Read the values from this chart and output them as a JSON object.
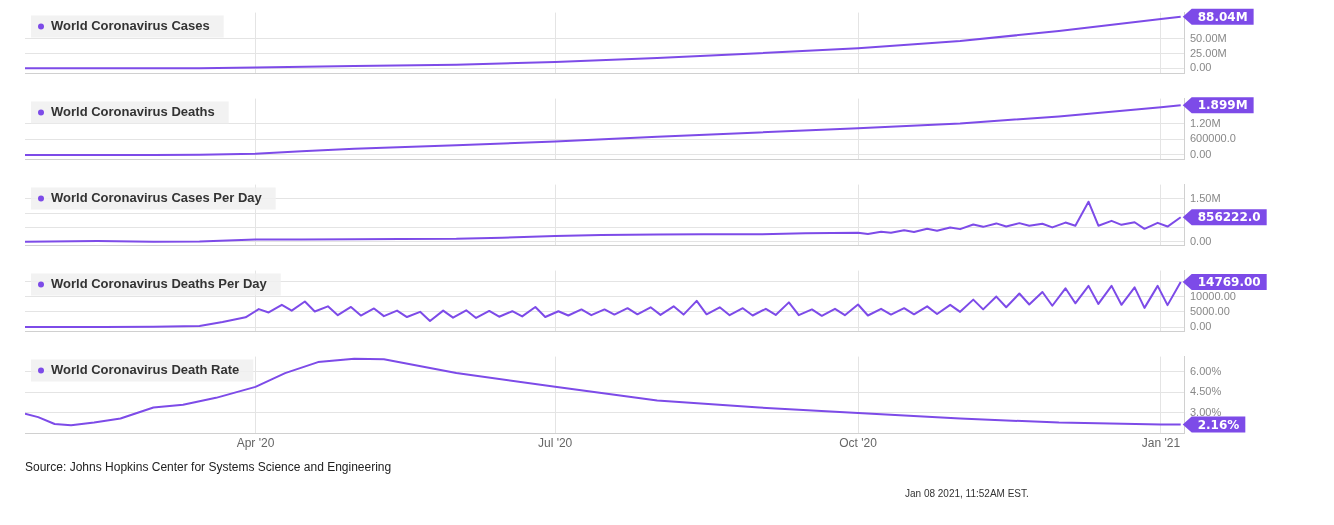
{
  "chart_data": [
    {
      "type": "line",
      "legend": "top left",
      "grid": true,
      "marker": "none",
      "line_style": "solid",
      "tick_labels": "y",
      "x": [
        "2020-01-22",
        "2020-02-15",
        "2020-03-01",
        "2020-03-15",
        "2020-04-01",
        "2020-05-01",
        "2020-06-01",
        "2020-07-01",
        "2020-08-01",
        "2020-09-01",
        "2020-10-01",
        "2020-11-01",
        "2020-12-01",
        "2021-01-01",
        "2021-01-07"
      ],
      "series": [
        {
          "name": "World Coronavirus Cases",
          "color": "#7d4be8",
          "values": [
            0,
            0,
            0,
            0,
            1000000,
            3500000,
            6000000,
            10500000,
            17500000,
            25500000,
            34000000,
            46500000,
            63500000,
            84000000,
            88040000
          ]
        }
      ],
      "xlim": [
        "2020-01-22",
        "2021-01-08"
      ],
      "xticks": [
        {
          "value": "2020-04-01",
          "label": null
        },
        {
          "value": "2020-07-01",
          "label": null
        },
        {
          "value": "2020-10-01",
          "label": null
        },
        {
          "value": "2021-01-01",
          "label": null
        }
      ],
      "ylim": [
        -9000000,
        95000000
      ],
      "yticks": [
        {
          "value": 0,
          "label": "0.00"
        },
        {
          "value": 25000000,
          "label": "25.00M"
        },
        {
          "value": 50000000,
          "label": "50.00M"
        }
      ],
      "annotations": [
        {
          "text": "88.04M",
          "x": "2021-01-07",
          "y": 88040000
        }
      ]
    },
    {
      "type": "line",
      "legend": "top left",
      "grid": true,
      "marker": "none",
      "line_style": "solid",
      "tick_labels": "y",
      "x": [
        "2020-01-22",
        "2020-02-15",
        "2020-03-01",
        "2020-03-15",
        "2020-04-01",
        "2020-04-15",
        "2020-05-01",
        "2020-06-01",
        "2020-07-01",
        "2020-08-01",
        "2020-09-01",
        "2020-10-01",
        "2020-11-01",
        "2020-12-01",
        "2021-01-01",
        "2021-01-07"
      ],
      "series": [
        {
          "name": "World Coronavirus Deaths",
          "color": "#7d4be8",
          "values": [
            0,
            0,
            0,
            10000,
            50000,
            140000,
            240000,
            370000,
            510000,
            690000,
            860000,
            1020000,
            1200000,
            1470000,
            1820000,
            1899000
          ]
        }
      ],
      "xlim": [
        "2020-01-22",
        "2021-01-08"
      ],
      "xticks": [
        {
          "value": "2020-04-01",
          "label": null
        },
        {
          "value": "2020-07-01",
          "label": null
        },
        {
          "value": "2020-10-01",
          "label": null
        },
        {
          "value": "2021-01-01",
          "label": null
        }
      ],
      "ylim": [
        -170000,
        2150000
      ],
      "yticks": [
        {
          "value": 0,
          "label": "0.00"
        },
        {
          "value": 600000,
          "label": "600000.0"
        },
        {
          "value": 1200000,
          "label": "1.20M"
        }
      ],
      "annotations": [
        {
          "text": "1.899M",
          "x": "2021-01-07",
          "y": 1899000
        }
      ]
    },
    {
      "type": "line",
      "legend": "top left",
      "grid": true,
      "marker": "none",
      "line_style": "solid",
      "tick_labels": "y",
      "x": [
        "2020-01-22",
        "2020-02-13",
        "2020-03-01",
        "2020-03-15",
        "2020-04-01",
        "2020-04-15",
        "2020-05-01",
        "2020-05-15",
        "2020-06-01",
        "2020-06-15",
        "2020-07-01",
        "2020-07-15",
        "2020-08-01",
        "2020-08-15",
        "2020-09-01",
        "2020-09-15",
        "2020-10-01",
        "2020-10-04",
        "2020-10-08",
        "2020-10-11",
        "2020-10-15",
        "2020-10-18",
        "2020-10-22",
        "2020-10-25",
        "2020-10-29",
        "2020-11-01",
        "2020-11-05",
        "2020-11-08",
        "2020-11-12",
        "2020-11-15",
        "2020-11-19",
        "2020-11-22",
        "2020-11-26",
        "2020-11-29",
        "2020-12-03",
        "2020-12-06",
        "2020-12-10",
        "2020-12-13",
        "2020-12-17",
        "2020-12-20",
        "2020-12-24",
        "2020-12-27",
        "2020-12-31",
        "2021-01-03",
        "2021-01-07"
      ],
      "series": [
        {
          "name": "World Coronavirus Cases Per Day",
          "color": "#7d4be8",
          "values": [
            0,
            20000,
            0,
            10000,
            76000,
            78000,
            88000,
            96000,
            100000,
            140000,
            200000,
            230000,
            250000,
            260000,
            260000,
            300000,
            310000,
            270000,
            350000,
            310000,
            400000,
            340000,
            450000,
            380000,
            500000,
            440000,
            600000,
            520000,
            640000,
            530000,
            650000,
            560000,
            630000,
            500000,
            670000,
            560000,
            1400000,
            560000,
            730000,
            590000,
            680000,
            450000,
            660000,
            530000,
            856222
          ]
        }
      ],
      "xlim": [
        "2020-01-22",
        "2021-01-08"
      ],
      "xticks": [
        {
          "value": "2020-04-01",
          "label": null
        },
        {
          "value": "2020-07-01",
          "label": null
        },
        {
          "value": "2020-10-01",
          "label": null
        },
        {
          "value": "2021-01-01",
          "label": null
        }
      ],
      "ylim": [
        -130000,
        2000000
      ],
      "yticks": [
        {
          "value": 0,
          "label": "0.00"
        },
        {
          "value": 500000,
          "label": null
        },
        {
          "value": 1000000,
          "label": null
        },
        {
          "value": 1500000,
          "label": "1.50M"
        }
      ],
      "annotations": [
        {
          "text": "856222.0",
          "x": "2021-01-07",
          "y": 856222
        }
      ]
    },
    {
      "type": "line",
      "legend": "top left",
      "grid": true,
      "marker": "none",
      "line_style": "solid",
      "tick_labels": "y",
      "x": [
        "2020-01-22",
        "2020-02-15",
        "2020-03-01",
        "2020-03-15",
        "2020-03-22",
        "2020-03-29",
        "2020-04-02",
        "2020-04-05",
        "2020-04-09",
        "2020-04-12",
        "2020-04-16",
        "2020-04-19",
        "2020-04-23",
        "2020-04-26",
        "2020-04-30",
        "2020-05-03",
        "2020-05-07",
        "2020-05-10",
        "2020-05-14",
        "2020-05-17",
        "2020-05-21",
        "2020-05-24",
        "2020-05-28",
        "2020-05-31",
        "2020-06-04",
        "2020-06-07",
        "2020-06-11",
        "2020-06-14",
        "2020-06-18",
        "2020-06-21",
        "2020-06-25",
        "2020-06-28",
        "2020-07-02",
        "2020-07-05",
        "2020-07-09",
        "2020-07-12",
        "2020-07-16",
        "2020-07-19",
        "2020-07-23",
        "2020-07-26",
        "2020-07-30",
        "2020-08-02",
        "2020-08-06",
        "2020-08-09",
        "2020-08-13",
        "2020-08-16",
        "2020-08-20",
        "2020-08-23",
        "2020-08-27",
        "2020-08-30",
        "2020-09-03",
        "2020-09-06",
        "2020-09-10",
        "2020-09-13",
        "2020-09-17",
        "2020-09-20",
        "2020-09-24",
        "2020-09-27",
        "2020-10-01",
        "2020-10-04",
        "2020-10-08",
        "2020-10-11",
        "2020-10-15",
        "2020-10-18",
        "2020-10-22",
        "2020-10-25",
        "2020-10-29",
        "2020-11-01",
        "2020-11-05",
        "2020-11-08",
        "2020-11-12",
        "2020-11-15",
        "2020-11-19",
        "2020-11-22",
        "2020-11-26",
        "2020-11-29",
        "2020-12-03",
        "2020-12-06",
        "2020-12-10",
        "2020-12-13",
        "2020-12-17",
        "2020-12-20",
        "2020-12-24",
        "2020-12-27",
        "2020-12-31",
        "2021-01-03",
        "2021-01-07"
      ],
      "series": [
        {
          "name": "World Coronavirus Deaths Per Day",
          "color": "#7d4be8",
          "values": [
            0,
            0,
            100,
            400,
            1700,
            3200,
            5900,
            4800,
            7300,
            5400,
            8400,
            5100,
            6800,
            3900,
            6600,
            3800,
            6100,
            3600,
            5400,
            3300,
            5000,
            2000,
            5400,
            3100,
            5500,
            3000,
            5300,
            3400,
            5200,
            3500,
            6600,
            3300,
            5200,
            3800,
            5800,
            3900,
            5800,
            4100,
            6200,
            4200,
            6500,
            4000,
            6800,
            4100,
            8600,
            4200,
            6500,
            3900,
            6200,
            3800,
            6000,
            4000,
            8100,
            3900,
            5800,
            3700,
            6000,
            3900,
            7400,
            3800,
            6000,
            4100,
            6200,
            4200,
            6800,
            4300,
            7300,
            5000,
            9000,
            5800,
            10000,
            6500,
            11000,
            7400,
            11500,
            7000,
            12700,
            7800,
            13500,
            7600,
            13500,
            7300,
            13000,
            6300,
            13500,
            7200,
            14769
          ]
        }
      ],
      "xlim": [
        "2020-01-22",
        "2021-01-08"
      ],
      "xticks": [
        {
          "value": "2020-04-01",
          "label": null
        },
        {
          "value": "2020-07-01",
          "label": null
        },
        {
          "value": "2020-10-01",
          "label": null
        },
        {
          "value": "2021-01-01",
          "label": null
        }
      ],
      "ylim": [
        -1400,
        18500
      ],
      "yticks": [
        {
          "value": 0,
          "label": "0.00"
        },
        {
          "value": 5000,
          "label": "5000.00"
        },
        {
          "value": 10000,
          "label": "10000.00"
        },
        {
          "value": 15000,
          "label": null
        }
      ],
      "annotations": [
        {
          "text": "14769.00",
          "x": "2021-01-07",
          "y": 14769
        }
      ]
    },
    {
      "type": "line",
      "legend": "top left",
      "grid": true,
      "marker": "none",
      "line_style": "solid",
      "x": [
        "2020-01-22",
        "2020-01-26",
        "2020-01-31",
        "2020-02-05",
        "2020-02-12",
        "2020-02-20",
        "2020-03-01",
        "2020-03-10",
        "2020-03-20",
        "2020-04-01",
        "2020-04-10",
        "2020-04-20",
        "2020-05-01",
        "2020-05-10",
        "2020-06-01",
        "2020-07-01",
        "2020-08-01",
        "2020-09-01",
        "2020-10-01",
        "2020-11-01",
        "2020-12-01",
        "2021-01-01",
        "2021-01-07"
      ],
      "series": [
        {
          "name": "World Coronavirus Death Rate",
          "color": "#7d4be8",
          "values": [
            2.95,
            2.7,
            2.2,
            2.1,
            2.3,
            2.6,
            3.4,
            3.6,
            4.1,
            4.9,
            5.9,
            6.7,
            6.95,
            6.9,
            5.9,
            4.9,
            3.9,
            3.4,
            3.0,
            2.6,
            2.3,
            2.17,
            2.16
          ]
        }
      ],
      "xlim": [
        "2020-01-22",
        "2021-01-08"
      ],
      "xticks": [
        {
          "value": "2020-04-01",
          "label": "Apr '20"
        },
        {
          "value": "2020-07-01",
          "label": "Jul '20"
        },
        {
          "value": "2020-10-01",
          "label": "Oct '20"
        },
        {
          "value": "2021-01-01",
          "label": "Jan '21"
        }
      ],
      "ylim": [
        1.5,
        7.1
      ],
      "yticks": [
        {
          "value": 3,
          "label": "3.00%"
        },
        {
          "value": 4.5,
          "label": "4.50%"
        },
        {
          "value": 6,
          "label": "6.00%"
        }
      ],
      "annotations": [
        {
          "text": "2.16%",
          "x": "2021-01-07",
          "y": 2.16
        },
        "Source: Johns Hopkins Center for Systems Science and Engineering",
        "Jan 08 2021, 11:52AM EST."
      ]
    }
  ]
}
